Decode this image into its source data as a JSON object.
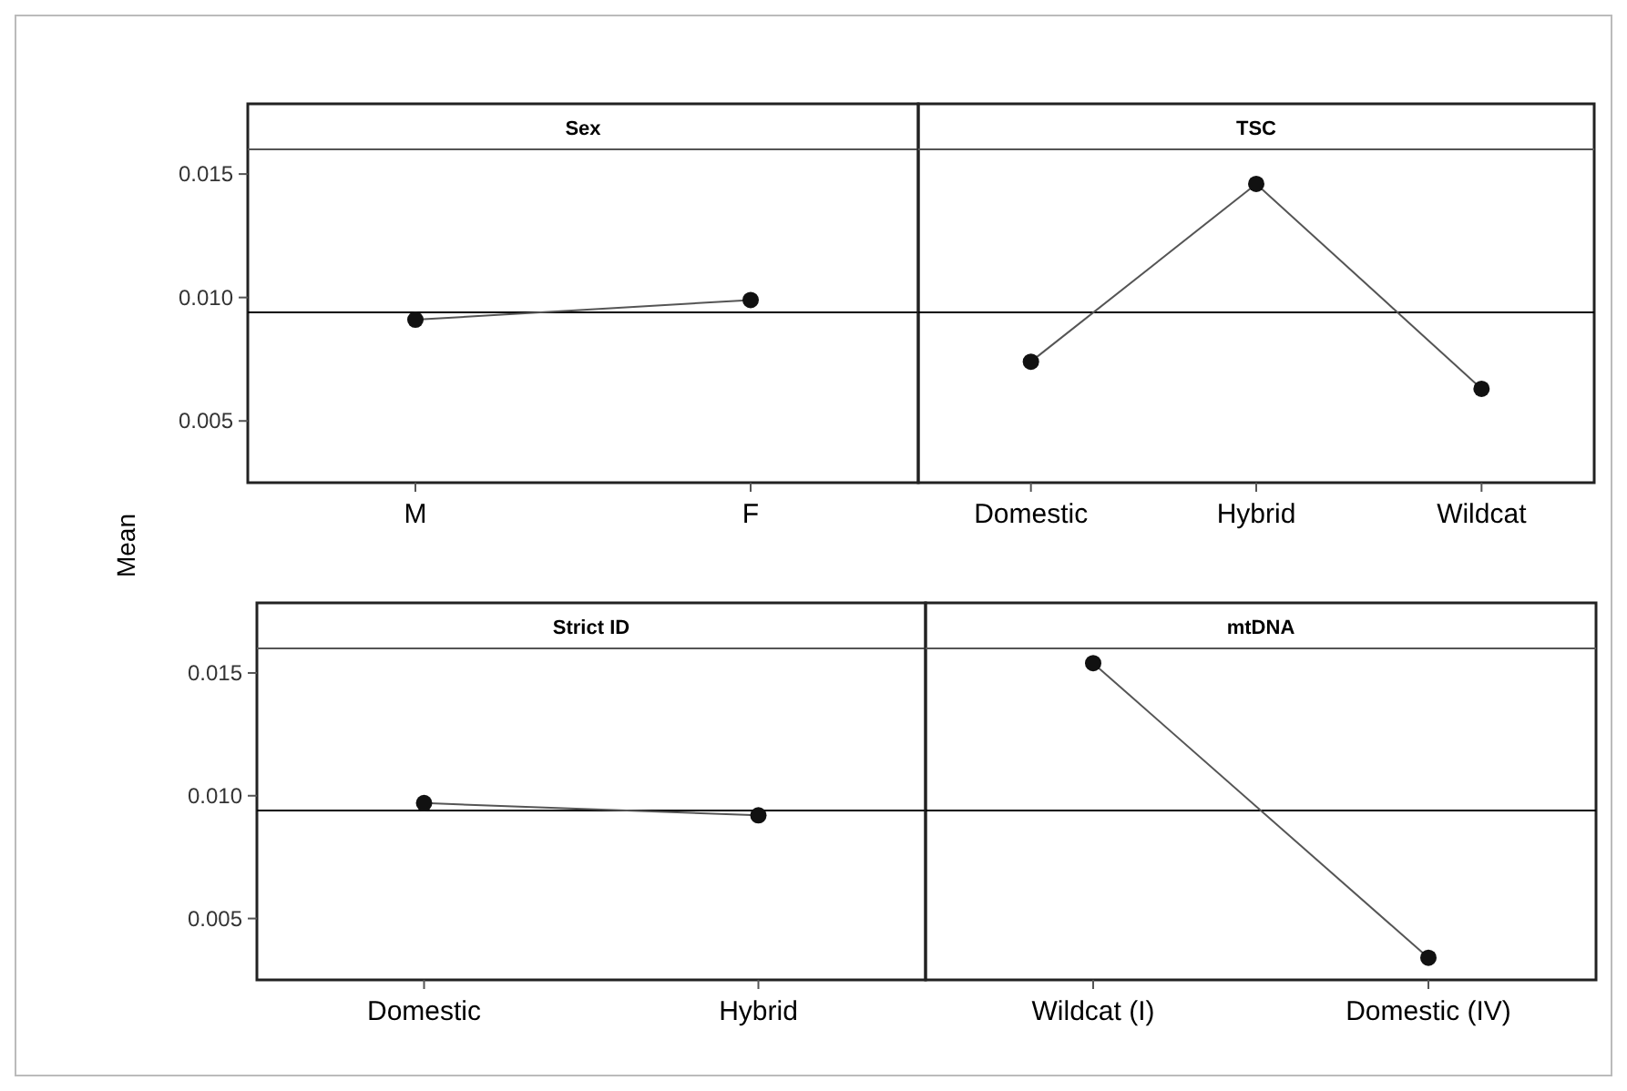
{
  "chart_data": [
    {
      "type": "line",
      "title": "Sex",
      "ylabel": "Mean",
      "categories": [
        "M",
        "F"
      ],
      "series": [
        {
          "color": "#555555",
          "values": [
            0.0091,
            0.0099
          ]
        }
      ],
      "ylim": [
        0.0025,
        0.016
      ],
      "yticks": [
        {
          "value": 0.005,
          "label": "0.005"
        },
        {
          "value": 0.01,
          "label": "0.010"
        },
        {
          "value": 0.015,
          "label": "0.015"
        }
      ],
      "ref_lines": [
        {
          "axis": "y",
          "value": 0.0094,
          "color": "#000000"
        }
      ],
      "marker": "circle"
    },
    {
      "type": "line",
      "title": "TSC",
      "categories": [
        "Domestic",
        "Hybrid",
        "Wildcat"
      ],
      "series": [
        {
          "color": "#555555",
          "values": [
            0.0074,
            0.0146,
            0.0063
          ]
        }
      ],
      "ylim": [
        0.0025,
        0.016
      ],
      "tick_labels": "x",
      "ref_lines": [
        {
          "axis": "y",
          "value": 0.0094,
          "color": "#000000"
        }
      ],
      "marker": "circle"
    },
    {
      "type": "line",
      "title": "Strict ID",
      "categories": [
        "Domestic",
        "Hybrid"
      ],
      "series": [
        {
          "color": "#555555",
          "values": [
            0.0097,
            0.0092
          ]
        }
      ],
      "ylim": [
        0.0025,
        0.016
      ],
      "yticks": [
        {
          "value": 0.005,
          "label": "0.005"
        },
        {
          "value": 0.01,
          "label": "0.010"
        },
        {
          "value": 0.015,
          "label": "0.015"
        }
      ],
      "ref_lines": [
        {
          "axis": "y",
          "value": 0.0094,
          "color": "#000000"
        }
      ],
      "marker": "circle"
    },
    {
      "type": "line",
      "title": "mtDNA",
      "categories": [
        "Wildcat (I)",
        "Domestic (IV)"
      ],
      "series": [
        {
          "color": "#555555",
          "values": [
            0.0154,
            0.0034
          ]
        }
      ],
      "ylim": [
        0.0025,
        0.016
      ],
      "tick_labels": "x",
      "ref_lines": [
        {
          "axis": "y",
          "value": 0.0094,
          "color": "#000000"
        }
      ],
      "marker": "circle"
    }
  ]
}
